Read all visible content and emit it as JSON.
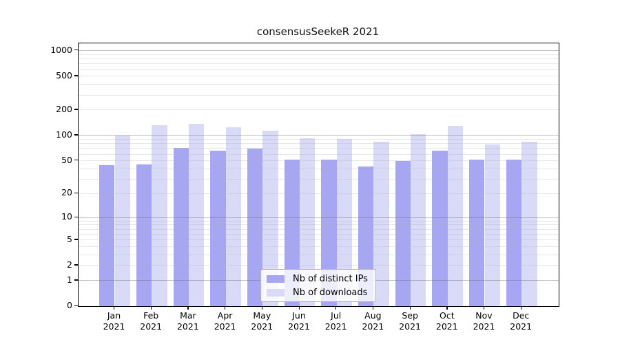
{
  "title": "consensusSeekeR 2021",
  "chart_data": {
    "type": "bar",
    "title": "consensusSeekeR 2021",
    "y_scale": "log10(value+1)",
    "grid": true,
    "legend_position": "bottom-center",
    "ylim": [
      0,
      1200
    ],
    "y_ticks": [
      1000,
      500,
      200,
      100,
      50,
      20,
      10,
      5,
      2,
      1,
      0
    ],
    "categories": [
      "Jan 2021",
      "Feb 2021",
      "Mar 2021",
      "Apr 2021",
      "May 2021",
      "Jun 2021",
      "Jul 2021",
      "Aug 2021",
      "Sep 2021",
      "Oct 2021",
      "Nov 2021",
      "Dec 2021"
    ],
    "x_tick_line1": [
      "Jan",
      "Feb",
      "Mar",
      "Apr",
      "May",
      "Jun",
      "Jul",
      "Aug",
      "Sep",
      "Oct",
      "Nov",
      "Dec"
    ],
    "x_tick_line2": "2021",
    "series": [
      {
        "name": "Nb of distinct IPs",
        "color": "#a6a6f2",
        "values": [
          44,
          45,
          71,
          66,
          70,
          52,
          52,
          43,
          50,
          66,
          52,
          52
        ]
      },
      {
        "name": "Nb of downloads",
        "color": "#d9d9f8",
        "values": [
          100,
          132,
          137,
          126,
          115,
          93,
          91,
          84,
          103,
          130,
          78,
          84
        ]
      }
    ]
  },
  "colors": {
    "axis": "#000000",
    "grid_major": "#6e6e6e",
    "grid_minor": "#afafaf",
    "background": "#ffffff",
    "series_ips": "#a6a6f2",
    "series_downloads": "#d9d9f8"
  }
}
